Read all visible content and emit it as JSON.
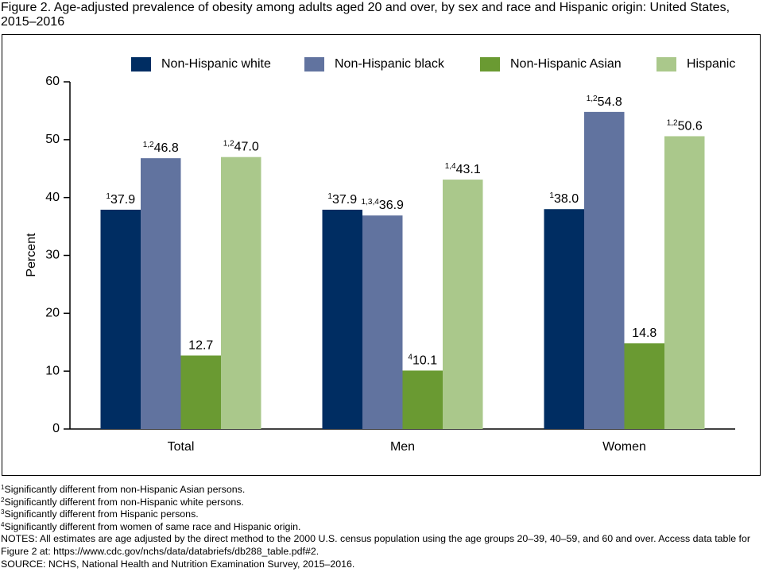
{
  "chart_data": {
    "type": "bar",
    "title": "Figure 2. Age-adjusted prevalence of obesity among adults aged 20 and over, by sex and race and Hispanic origin: United States, 2015–2016",
    "y_label": "Percent",
    "categories": [
      "Total",
      "Men",
      "Women"
    ],
    "series": [
      {
        "name": "Non-Hispanic white",
        "color": "#002d62",
        "values": [
          37.9,
          37.9,
          38.0
        ],
        "value_labels": [
          "37.9",
          "37.9",
          "38.0"
        ],
        "label_notes": [
          "1",
          "1",
          "1"
        ]
      },
      {
        "name": "Non-Hispanic black",
        "color": "#61739f",
        "values": [
          46.8,
          36.9,
          54.8
        ],
        "value_labels": [
          "46.8",
          "36.9",
          "54.8"
        ],
        "label_notes": [
          "1,2",
          "1,3,4",
          "1,2"
        ]
      },
      {
        "name": "Non-Hispanic Asian",
        "color": "#6a9a32",
        "values": [
          12.7,
          10.1,
          14.8
        ],
        "value_labels": [
          "12.7",
          "10.1",
          "14.8"
        ],
        "label_notes": [
          null,
          "4",
          null
        ]
      },
      {
        "name": "Hispanic",
        "color": "#aac88b",
        "values": [
          47.0,
          43.1,
          50.6
        ],
        "value_labels": [
          "47.0",
          "43.1",
          "50.6"
        ],
        "label_notes": [
          "1,2",
          "1,4",
          "1,2"
        ]
      }
    ],
    "ylim": [
      0,
      60
    ],
    "yticks": [
      0,
      10,
      20,
      30,
      40,
      50,
      60
    ],
    "grid": false,
    "legend": "top",
    "footnotes": [
      {
        "marker": "1",
        "text": "Significantly different from non-Hispanic Asian persons."
      },
      {
        "marker": "2",
        "text": "Significantly different from non-Hispanic white persons."
      },
      {
        "marker": "3",
        "text": "Significantly different from Hispanic persons."
      },
      {
        "marker": "4",
        "text": "Significantly different from women of same race and Hispanic origin."
      }
    ],
    "notes": "NOTES: All estimates are age adjusted by the direct method to the 2000 U.S. census population using the age groups 20–39, 40–59, and 60 and over. Access data table for Figure 2 at: https://www.cdc.gov/nchs/data/databriefs/db288_table.pdf#2.",
    "source": "SOURCE: NCHS, National Health and Nutrition Examination Survey, 2015–2016."
  }
}
